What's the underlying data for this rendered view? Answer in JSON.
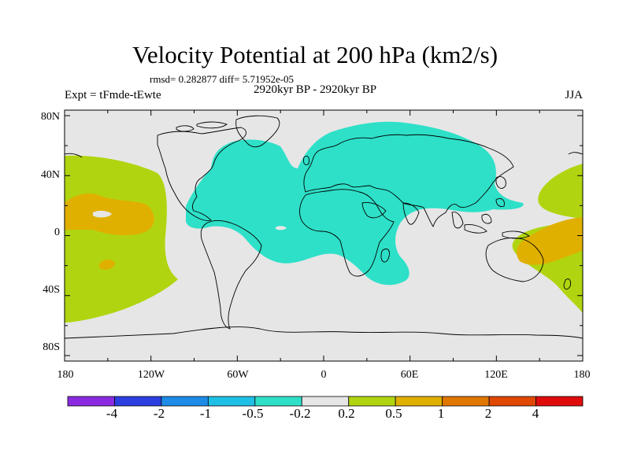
{
  "title": "Velocity Potential at 200 hPa (km2/s)",
  "stats_text": "rmsd= 0.282877 diff= 5.71952e-05",
  "experiment_text": "Expt = tFmde-tEwte",
  "period_text": "2920kyr BP - 2920kyr BP",
  "season_text": "JJA",
  "latitude_labels": [
    "80N",
    "40N",
    "0",
    "40S",
    "80S"
  ],
  "longitude_labels": [
    "180",
    "120W",
    "60W",
    "0",
    "60E",
    "120E",
    "180"
  ],
  "colorbar": {
    "colors": [
      "#8a2be2",
      "#2b3fe0",
      "#1e8ce6",
      "#1fbfe6",
      "#2ee0c8",
      "#e6e6e6",
      "#b0d510",
      "#e0b000",
      "#e07800",
      "#e04800",
      "#e00c0c"
    ],
    "labels": [
      "-4",
      "-2",
      "-1",
      "-0.5",
      "-0.2",
      "0.2",
      "0.5",
      "1",
      "2",
      "4"
    ]
  },
  "map_colors": {
    "ocean_background": "#e6e6e6",
    "negative_region": "#2ee0c8",
    "positive_region": "#b0d510",
    "strong_positive_region": "#e0b000",
    "coastline": "#000000"
  }
}
